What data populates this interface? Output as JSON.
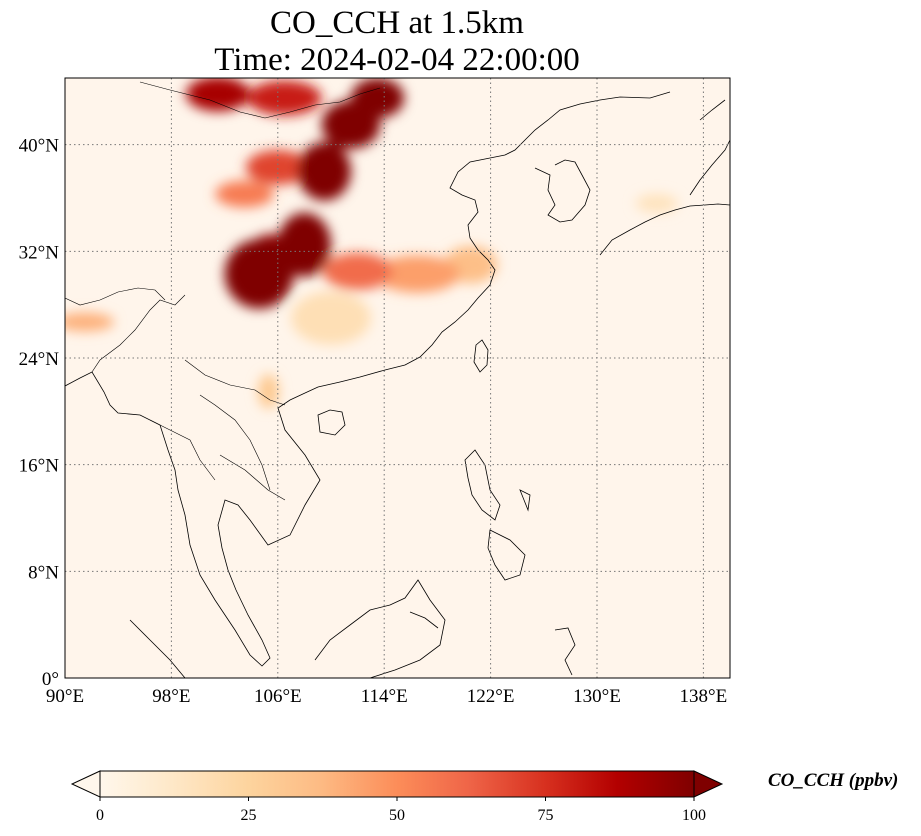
{
  "title": {
    "line1": "CO_CCH at 1.5km",
    "line2": "Time: 2024-02-04 22:00:00"
  },
  "map": {
    "projection": "PlateCarree",
    "extent_lon": [
      90,
      140
    ],
    "extent_lat": [
      0,
      45
    ],
    "gridlines": "dotted",
    "lon_ticks": [
      {
        "value": 90,
        "label": "90°E"
      },
      {
        "value": 98,
        "label": "98°E"
      },
      {
        "value": 106,
        "label": "106°E"
      },
      {
        "value": 114,
        "label": "114°E"
      },
      {
        "value": 122,
        "label": "122°E"
      },
      {
        "value": 130,
        "label": "130°E"
      },
      {
        "value": 138,
        "label": "138°E"
      }
    ],
    "lat_ticks": [
      {
        "value": 0,
        "label": "0°"
      },
      {
        "value": 8,
        "label": "8°N"
      },
      {
        "value": 16,
        "label": "16°N"
      },
      {
        "value": 24,
        "label": "24°N"
      },
      {
        "value": 32,
        "label": "32°N"
      },
      {
        "value": 40,
        "label": "40°N"
      }
    ],
    "background_color": "#fff5eb",
    "coastline_color": "#000000",
    "plumes": [
      {
        "lon": 104.6,
        "lat": 30.3,
        "value": 100,
        "rlon": 2.6,
        "rlat": 2.6
      },
      {
        "lon": 108.0,
        "lat": 32.5,
        "value": 100,
        "rlon": 2.0,
        "rlat": 2.4
      },
      {
        "lon": 105.5,
        "lat": 31.5,
        "value": 95,
        "rlon": 1.8,
        "rlat": 1.8
      },
      {
        "lon": 109.5,
        "lat": 38.0,
        "value": 100,
        "rlon": 2.0,
        "rlat": 2.2
      },
      {
        "lon": 111.5,
        "lat": 41.5,
        "value": 100,
        "rlon": 2.2,
        "rlat": 1.8
      },
      {
        "lon": 113.5,
        "lat": 43.5,
        "value": 100,
        "rlon": 2.0,
        "rlat": 1.5
      },
      {
        "lon": 101.5,
        "lat": 43.8,
        "value": 90,
        "rlon": 2.4,
        "rlat": 1.3
      },
      {
        "lon": 106.5,
        "lat": 43.5,
        "value": 80,
        "rlon": 2.8,
        "rlat": 1.3
      },
      {
        "lon": 106.0,
        "lat": 38.3,
        "value": 70,
        "rlon": 2.4,
        "rlat": 1.3
      },
      {
        "lon": 103.5,
        "lat": 36.3,
        "value": 55,
        "rlon": 2.2,
        "rlat": 1.0
      },
      {
        "lon": 112.0,
        "lat": 30.5,
        "value": 60,
        "rlon": 2.6,
        "rlat": 1.4
      },
      {
        "lon": 116.5,
        "lat": 30.3,
        "value": 45,
        "rlon": 3.2,
        "rlat": 1.4
      },
      {
        "lon": 120.5,
        "lat": 31.0,
        "value": 35,
        "rlon": 2.0,
        "rlat": 1.4
      },
      {
        "lon": 91.5,
        "lat": 26.7,
        "value": 40,
        "rlon": 2.2,
        "rlat": 0.7
      },
      {
        "lon": 105.3,
        "lat": 21.5,
        "value": 30,
        "rlon": 0.8,
        "rlat": 1.3
      },
      {
        "lon": 110.0,
        "lat": 27.0,
        "value": 18,
        "rlon": 3.0,
        "rlat": 2.0
      },
      {
        "lon": 134.5,
        "lat": 35.6,
        "value": 15,
        "rlon": 1.6,
        "rlat": 0.7
      }
    ]
  },
  "colorbar": {
    "label": "CO_CCH (ppbv)",
    "min": 0,
    "max": 100,
    "extend": "both",
    "colormap": "OrRd",
    "ticks": [
      {
        "value": 0,
        "label": "0"
      },
      {
        "value": 25,
        "label": "25"
      },
      {
        "value": 50,
        "label": "50"
      },
      {
        "value": 75,
        "label": "75"
      },
      {
        "value": 100,
        "label": "100"
      }
    ]
  }
}
